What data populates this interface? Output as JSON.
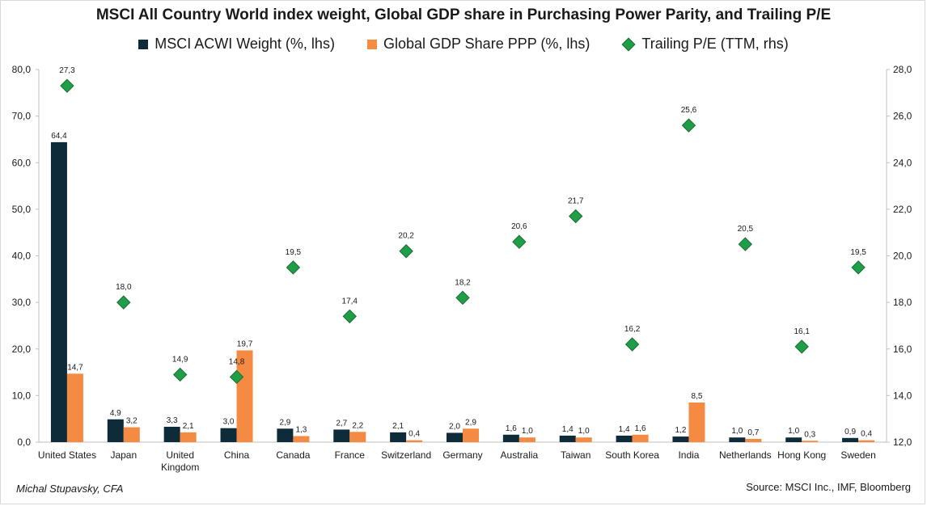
{
  "chart_data": {
    "type": "bar",
    "title": "MSCI All Country World index weight, Global GDP share in Purchasing Power Parity, and Trailing P/E",
    "categories": [
      "United States",
      "Japan",
      "United Kingdom",
      "China",
      "Canada",
      "France",
      "Switzerland",
      "Germany",
      "Australia",
      "Taiwan",
      "South Korea",
      "India",
      "Netherlands",
      "Hong Kong",
      "Sweden"
    ],
    "series": [
      {
        "name": "MSCI ACWI Weight (%, lhs)",
        "type": "bar",
        "axis": "left",
        "color": "#0d2b38",
        "values": [
          64.4,
          4.9,
          3.3,
          3.0,
          2.9,
          2.7,
          2.1,
          2.0,
          1.6,
          1.4,
          1.4,
          1.2,
          1.0,
          1.0,
          0.9
        ],
        "labels": [
          "64,4",
          "4,9",
          "3,3",
          "3,0",
          "2,9",
          "2,7",
          "2,1",
          "2,0",
          "1,6",
          "1,4",
          "1,4",
          "1,2",
          "1,0",
          "1,0",
          "0,9"
        ]
      },
      {
        "name": "Global GDP Share PPP (%, lhs)",
        "type": "bar",
        "axis": "left",
        "color": "#f58a42",
        "values": [
          14.7,
          3.2,
          2.1,
          19.7,
          1.3,
          2.2,
          0.4,
          2.9,
          1.0,
          1.0,
          1.6,
          8.5,
          0.7,
          0.3,
          0.4
        ],
        "labels": [
          "14,7",
          "3,2",
          "2,1",
          "19,7",
          "1,3",
          "2,2",
          "0,4",
          "2,9",
          "1,0",
          "1,0",
          "1,6",
          "8,5",
          "0,7",
          "0,3",
          "0,4"
        ]
      },
      {
        "name": "Trailing P/E (TTM, rhs)",
        "type": "scatter",
        "axis": "right",
        "color": "#1f9e48",
        "values": [
          27.3,
          18.0,
          14.9,
          14.8,
          19.5,
          17.4,
          20.2,
          18.2,
          20.6,
          21.7,
          16.2,
          25.6,
          20.5,
          16.1,
          19.5
        ],
        "labels": [
          "27,3",
          "18,0",
          "14,9",
          "14,8",
          "19,5",
          "17,4",
          "20,2",
          "18,2",
          "20,6",
          "21,7",
          "16,2",
          "25,6",
          "20,5",
          "16,1",
          "19,5"
        ]
      }
    ],
    "y_left": {
      "range": [
        0,
        80
      ],
      "ticks": [
        0,
        10,
        20,
        30,
        40,
        50,
        60,
        70,
        80
      ],
      "tick_labels": [
        "0,0",
        "10,0",
        "20,0",
        "30,0",
        "40,0",
        "50,0",
        "60,0",
        "70,0",
        "80,0"
      ]
    },
    "y_right": {
      "range": [
        12,
        28
      ],
      "ticks": [
        12,
        14,
        16,
        18,
        20,
        22,
        24,
        26,
        28
      ],
      "tick_labels": [
        "12,0",
        "14,0",
        "16,0",
        "18,0",
        "20,0",
        "22,0",
        "24,0",
        "26,0",
        "28,0"
      ]
    },
    "grid": false,
    "legend_position": "top"
  },
  "footer": {
    "author": "Michal Stupavsky, CFA",
    "source": "Source: MSCI Inc., IMF, Bloomberg"
  }
}
